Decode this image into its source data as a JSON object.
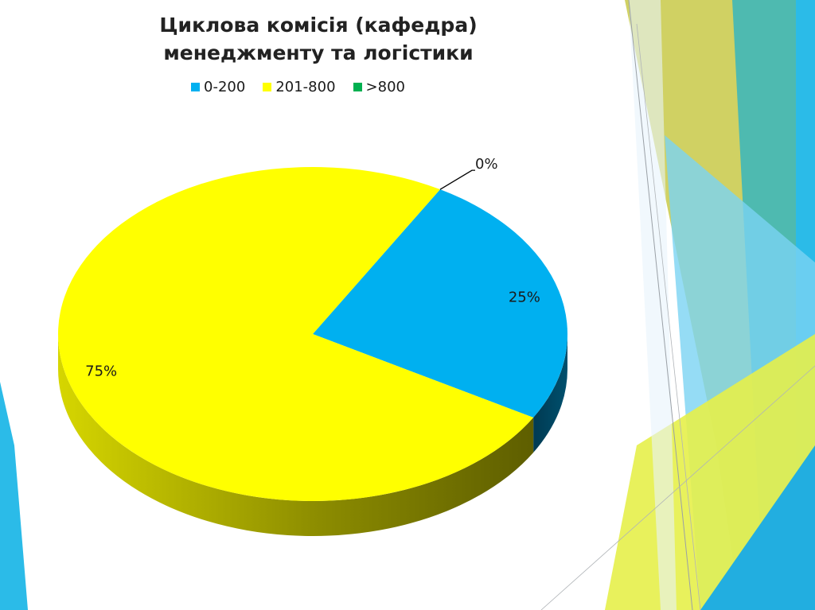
{
  "chart_data": {
    "type": "pie",
    "title_lines": [
      "Циклова комісія (кафедра)",
      "менеджменту та логістики"
    ],
    "legend_position": "top",
    "categories": [
      "0-200",
      "201-800",
      ">800"
    ],
    "values": [
      25,
      75,
      0
    ],
    "data_labels": [
      "25%",
      "75%",
      "0%"
    ],
    "colors": [
      "#00b0f0",
      "#ffff00",
      "#00b050"
    ]
  }
}
